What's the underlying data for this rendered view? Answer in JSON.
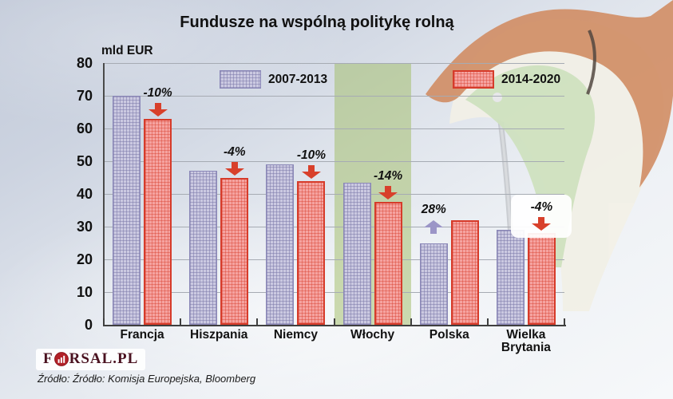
{
  "title": "Fundusze na wspólną politykę rolną",
  "unit_label": "mld EUR",
  "source": {
    "text": "Źródło: Źródło: Komisja Europejska, Bloomberg"
  },
  "logo": {
    "text_start": "F",
    "text_end": "RSAL.PL",
    "icon": "forsal-bar-chart-circle"
  },
  "colors": {
    "series_2007_fill": "#cbc9e1",
    "series_2007_border": "#8b88b8",
    "series_2014_fill": "#f5a3a0",
    "series_2014_border": "#d63b2a",
    "arrow_down": "#d8402b",
    "arrow_up": "#9b95c7",
    "highlight_band": "rgba(160,188,100,0.5)",
    "gridline": "#a6abb3"
  },
  "chart_data": {
    "type": "bar",
    "title": "Fundusze na wspólną politykę rolną",
    "ylabel": "mld EUR",
    "ylim": [
      0,
      80
    ],
    "yticks": [
      0,
      10,
      20,
      30,
      40,
      50,
      60,
      70,
      80
    ],
    "grid": true,
    "legend_position": "top",
    "categories": [
      "Francja",
      "Hiszpania",
      "Niemcy",
      "Włochy",
      "Polska",
      "Wielka Brytania"
    ],
    "series": [
      {
        "name": "2007-2013",
        "values": [
          70,
          47,
          49,
          43.5,
          25,
          29
        ]
      },
      {
        "name": "2014-2020",
        "values": [
          63,
          45,
          44,
          37.5,
          32,
          28
        ]
      }
    ],
    "annotations": [
      {
        "category": "Francja",
        "label": "-10%",
        "direction": "down"
      },
      {
        "category": "Hiszpania",
        "label": "-4%",
        "direction": "down"
      },
      {
        "category": "Niemcy",
        "label": "-10%",
        "direction": "down"
      },
      {
        "category": "Włochy",
        "label": "-14%",
        "direction": "down"
      },
      {
        "category": "Polska",
        "label": "28%",
        "direction": "up"
      },
      {
        "category": "Wielka Brytania",
        "label": "-4%",
        "direction": "down",
        "white_background": true
      }
    ],
    "highlighted_category": "Włochy"
  }
}
